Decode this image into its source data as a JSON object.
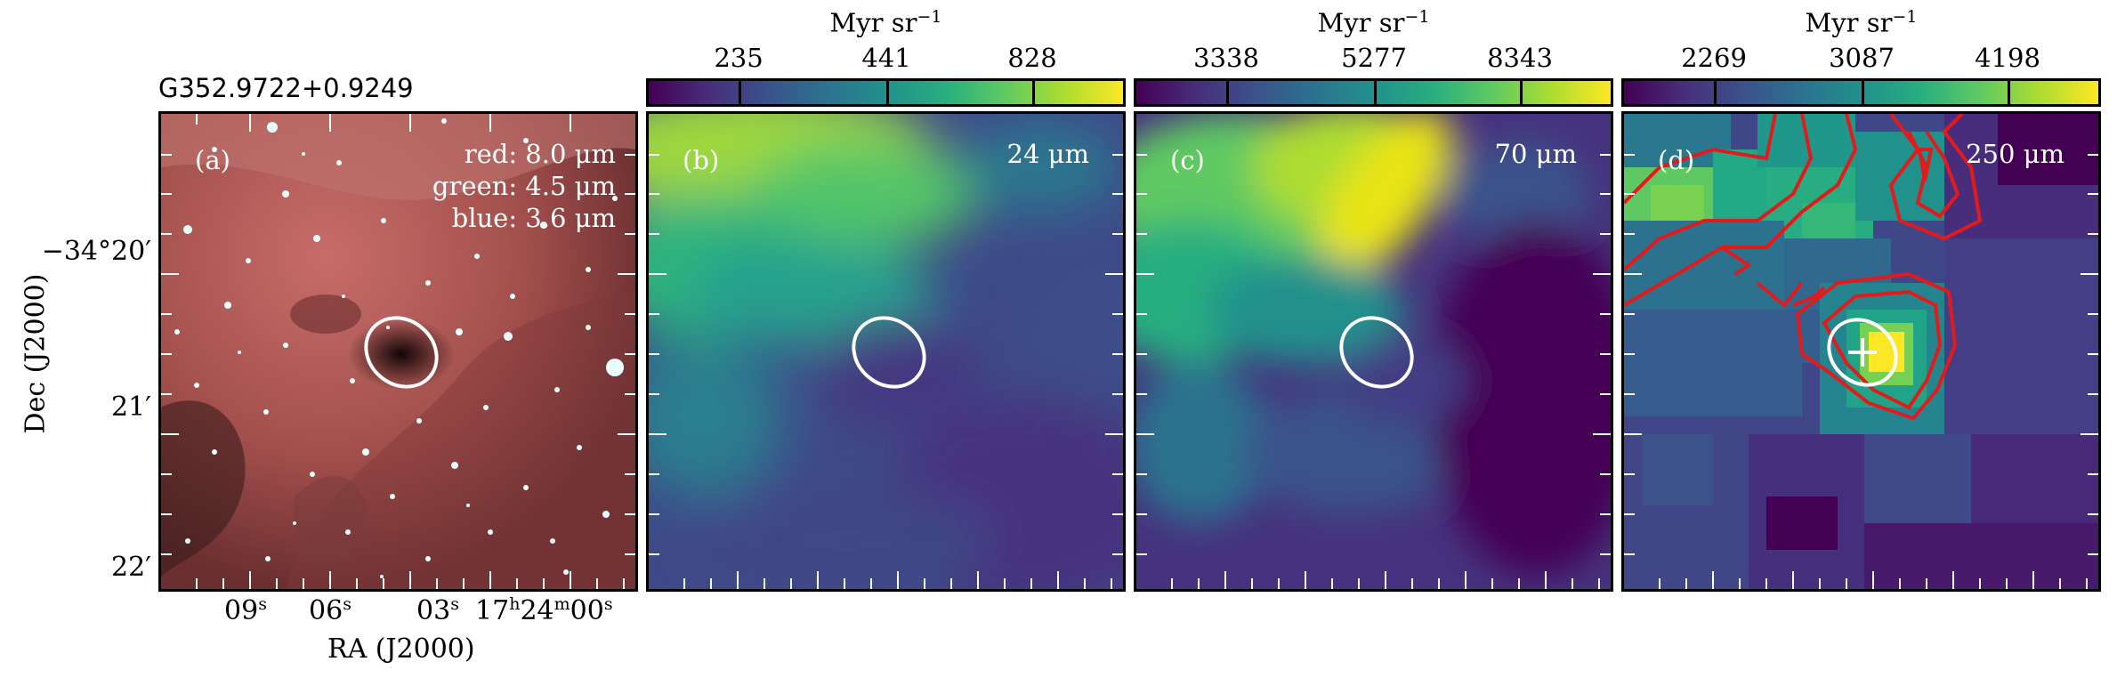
{
  "source_name": "G352.9722+0.9249",
  "axes": {
    "ylabel": "Dec (J2000)",
    "xlabel": "RA (J2000)",
    "yticks": [
      {
        "text": "−34°20′"
      },
      {
        "text": "21′"
      },
      {
        "text": "22′"
      }
    ],
    "xticks": [
      {
        "main": "09",
        "sup": "s"
      },
      {
        "main": "06",
        "sup": "s"
      },
      {
        "main": "03",
        "sup": "s"
      }
    ],
    "xtick_last": {
      "h": "17",
      "hsup": "h",
      "m": "24",
      "msup": "m",
      "s": "00",
      "ssup": "s"
    }
  },
  "panels": [
    {
      "letter": "(a)",
      "legend": [
        "red: 8.0 μm",
        "green: 4.5 μm",
        "blue: 3.6 μm"
      ]
    },
    {
      "letter": "(b)",
      "band": "24 μm",
      "colorbar": {
        "unit": "Myr sr",
        "unit_sup": "−1",
        "labels": [
          "235",
          "441",
          "828"
        ]
      }
    },
    {
      "letter": "(c)",
      "band": "70 μm",
      "colorbar": {
        "unit": "Myr sr",
        "unit_sup": "−1",
        "labels": [
          "3338",
          "5277",
          "8343"
        ]
      }
    },
    {
      "letter": "(d)",
      "band": "250 μm",
      "colorbar": {
        "unit": "Myr sr",
        "unit_sup": "−1",
        "labels": [
          "2269",
          "3087",
          "4198"
        ]
      }
    }
  ],
  "colors": {
    "viridis_dark": "#440154",
    "viridis_mid": "#21918c",
    "viridis_yellow": "#fde725",
    "contour": "#e31a1c",
    "rgb_red": "#b85a56"
  }
}
